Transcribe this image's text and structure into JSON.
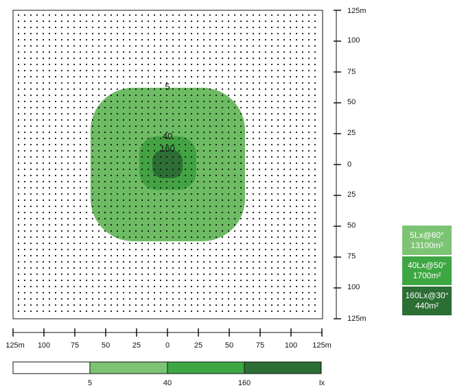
{
  "axes": {
    "right_ticks": [
      "125m",
      "100",
      "75",
      "50",
      "25",
      "0",
      "25",
      "50",
      "75",
      "100",
      "125m"
    ],
    "bottom_ticks": [
      "125m",
      "100",
      "75",
      "50",
      "25",
      "0",
      "25",
      "50",
      "75",
      "100",
      "125m"
    ]
  },
  "contours": [
    {
      "level": "5",
      "color": "#6dbb63"
    },
    {
      "level": "40",
      "color": "#43a343"
    },
    {
      "level": "160",
      "color": "#2c6e34"
    }
  ],
  "legend": [
    {
      "line1": "5Lx@60°",
      "line2": "13100m²",
      "color": "#7cc473"
    },
    {
      "line1": "40Lx@50°",
      "line2": "1700m²",
      "color": "#3ea743"
    },
    {
      "line1": "160Lx@30°",
      "line2": "440m²",
      "color": "#2c6e34"
    }
  ],
  "colorbar": {
    "labels": [
      "5",
      "40",
      "160",
      "lx"
    ],
    "colors": [
      "#ffffff",
      "#7cc473",
      "#3ea743",
      "#2c6e34"
    ]
  }
}
